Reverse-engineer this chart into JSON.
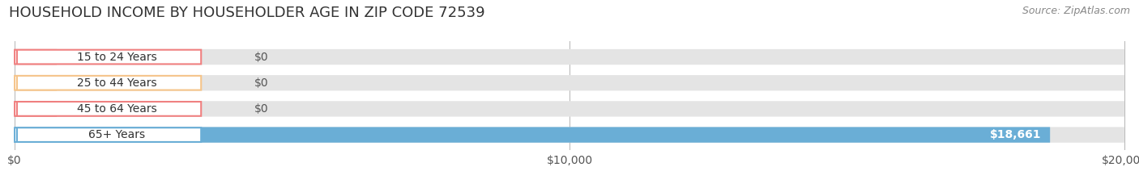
{
  "title": "HOUSEHOLD INCOME BY HOUSEHOLDER AGE IN ZIP CODE 72539",
  "source": "Source: ZipAtlas.com",
  "categories": [
    "15 to 24 Years",
    "25 to 44 Years",
    "45 to 64 Years",
    "65+ Years"
  ],
  "values": [
    0,
    0,
    0,
    18661
  ],
  "bar_colors": [
    "#f08080",
    "#f5c48a",
    "#f08080",
    "#6aaed6"
  ],
  "value_labels": [
    "$0",
    "$0",
    "$0",
    "$18,661"
  ],
  "xlim": [
    0,
    20000
  ],
  "xticks": [
    0,
    10000,
    20000
  ],
  "xticklabels": [
    "$0",
    "$10,000",
    "$20,000"
  ],
  "fig_bg_color": "#ffffff",
  "bar_bg": "#e4e4e4",
  "title_fontsize": 13,
  "source_fontsize": 9,
  "label_fontsize": 10,
  "tick_fontsize": 10
}
